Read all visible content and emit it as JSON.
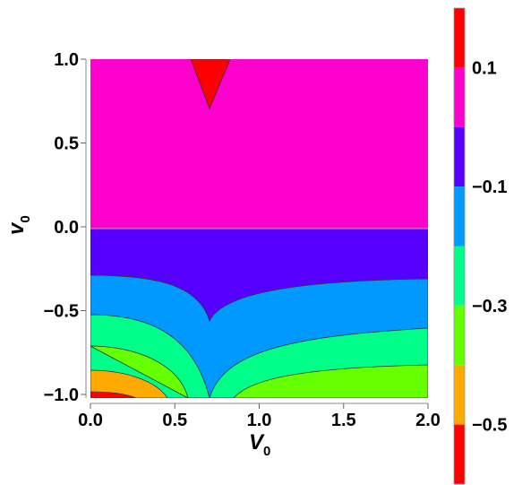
{
  "chart_data": {
    "type": "contour",
    "xlabel": "V",
    "xlabel_subscript": "0",
    "ylabel": "v",
    "ylabel_subscript": "0",
    "xlim": [
      0,
      2
    ],
    "ylim": [
      -1.03,
      1
    ],
    "x_ticks": [
      "0.0",
      "0.5",
      "1.0",
      "1.5",
      "2.0"
    ],
    "y_ticks": [
      "1.0",
      "0.5",
      "0.0",
      "−0.5",
      "−1.0"
    ],
    "colorbar": {
      "range": [
        -0.6,
        0.2
      ],
      "levels": [
        0.2,
        0.1,
        0.0,
        -0.1,
        -0.2,
        -0.3,
        -0.4,
        -0.5,
        -0.6
      ],
      "colors": [
        "#ff0000",
        "#ff00cc",
        "#5500ff",
        "#0099ff",
        "#00ff88",
        "#66ff00",
        "#ffaa00",
        "#ff0000"
      ],
      "tick_labels": [
        "0.1",
        "−0.1",
        "−0.3",
        "−0.5"
      ]
    },
    "regions": [
      {
        "level": "0.0 to 0.1",
        "color": "#ff00cc",
        "description_region": "v0 from 0 to 1"
      },
      {
        "level": "0.1 to 0.2",
        "color": "#ff0000",
        "peak_at_V0": 0.707
      },
      {
        "level": "-0.1 to 0.0",
        "color": "#5500ff"
      },
      {
        "level": "-0.2 to -0.1",
        "color": "#0099ff"
      },
      {
        "level": "-0.3 to -0.2",
        "color": "#00ff88"
      },
      {
        "level": "-0.4 to -0.3",
        "color": "#66ff00"
      },
      {
        "level": "-0.5 to -0.4",
        "color": "#ffaa00"
      },
      {
        "level": "-0.6 to -0.5",
        "color": "#ff0000"
      }
    ],
    "contour_lines": [
      {
        "level": 0.1,
        "vertex": [
          0.707,
          0.7
        ],
        "top_edge_x": [
          0.6,
          0.82
        ]
      },
      {
        "level": -0.1,
        "left_y": -0.28,
        "cusp": [
          0.707,
          -0.55
        ],
        "right_y": -0.29
      },
      {
        "level": -0.2,
        "left_y": -0.51,
        "cusp": [
          0.707,
          -1.0
        ],
        "right_y": -0.59
      },
      {
        "level": -0.3,
        "left_y": -0.69,
        "bottom_x": 0.57,
        "right_y": -0.8
      },
      {
        "level": -0.4,
        "left_y": -0.83,
        "bottom_x": 0.47,
        "bottom_x_right": 0.88
      },
      {
        "level": -0.5,
        "left_y": -0.97,
        "bottom_x": 0.28
      }
    ]
  }
}
